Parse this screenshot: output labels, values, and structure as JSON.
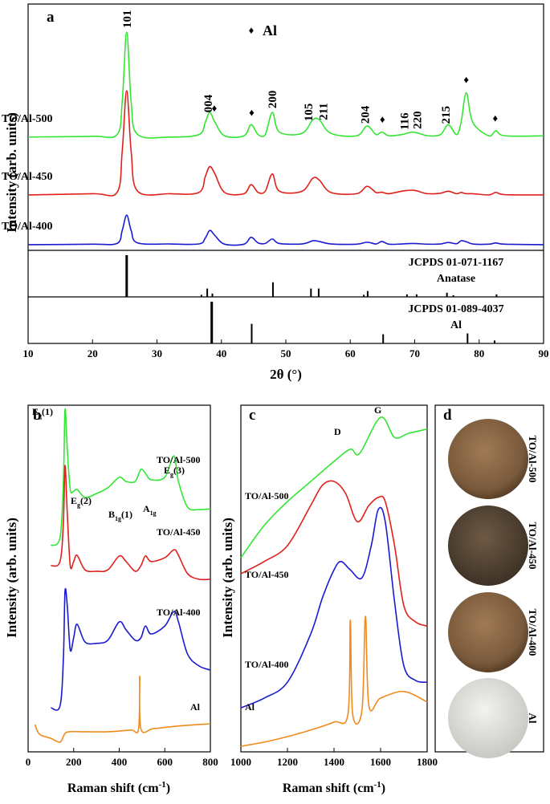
{
  "chart_data": [
    {
      "type": "line",
      "panel": "a",
      "x": [
        10,
        20,
        23.8,
        24.6,
        25.3,
        26,
        27,
        32,
        36.5,
        37.5,
        38.2,
        39,
        40.5,
        43.5,
        44.6,
        45.7,
        46.8,
        47.9,
        49,
        52.5,
        54.2,
        55.2,
        57,
        61,
        62.6,
        64,
        64.9,
        66,
        68,
        69.8,
        72,
        74,
        75.2,
        76.5,
        77.2,
        78,
        79,
        81.5,
        82.6,
        84,
        90
      ],
      "xlim": [
        10,
        90
      ],
      "xticks": [
        10,
        20,
        30,
        40,
        50,
        60,
        70,
        80,
        90
      ],
      "ylim": [
        0,
        100
      ],
      "xlabel": "2θ (°)",
      "ylabel": "Intensity (arb. units)",
      "series": [
        {
          "name": "TO/Al-500",
          "color": "#33e633",
          "values": [
            46,
            46.3,
            47,
            60,
            88.6,
            60,
            47,
            46,
            47,
            52,
            56,
            52,
            46.5,
            46.5,
            51,
            47,
            47,
            56,
            48,
            47.5,
            53,
            53,
            47.5,
            46.5,
            50.5,
            47,
            48,
            46.5,
            47,
            48,
            46.5,
            47,
            51,
            47,
            52,
            64,
            52,
            46.5,
            48.5,
            46.5,
            46.5
          ]
        },
        {
          "name": "TO/Al-450",
          "color": "#e0201b",
          "values": [
            22.5,
            23,
            23.5,
            40,
            64.8,
            40,
            24,
            23,
            23.5,
            30,
            34,
            31,
            23.5,
            23,
            26.7,
            23.5,
            24,
            31,
            24,
            24,
            29.3,
            28.5,
            23.5,
            23,
            26,
            23.5,
            23.6,
            23,
            24,
            24.4,
            23,
            23.2,
            24,
            23,
            23.5,
            23,
            23,
            22.5,
            23.5,
            22.6,
            22.5
          ]
        },
        {
          "name": "TO/Al-400",
          "color": "#1a1ad0",
          "values": [
            2.3,
            2.5,
            2.8,
            8,
            14.3,
            8,
            3,
            2.6,
            2.6,
            5,
            8.1,
            6,
            2.5,
            2.5,
            5.3,
            3,
            2.8,
            4.6,
            2.8,
            2.6,
            3.9,
            3.6,
            2.6,
            2.5,
            3.3,
            2.6,
            3.6,
            2.5,
            2.6,
            2.8,
            2.5,
            2.6,
            3.2,
            2.7,
            3.9,
            3.5,
            2.6,
            2.5,
            3,
            2.5,
            2.3
          ]
        }
      ],
      "peak_labels": [
        {
          "text": "101",
          "x": 25.3
        },
        {
          "text": "004",
          "x": 37.9
        },
        {
          "text": "200",
          "x": 47.9
        },
        {
          "text": "105",
          "x": 53.5
        },
        {
          "text": "211",
          "x": 55.8
        },
        {
          "text": "204",
          "x": 62.3
        },
        {
          "text": "116",
          "x": 68.4
        },
        {
          "text": "220",
          "x": 70.4
        },
        {
          "text": "215",
          "x": 74.8
        }
      ],
      "al_markers": {
        "symbol": "♦",
        "name": "Al",
        "x": [
          38.9,
          44.7,
          65,
          78,
          82.5
        ]
      },
      "references": [
        {
          "name": "JCPDS 01-071-1167",
          "phase": "Anatase",
          "ylim": [
            0,
            100
          ],
          "x": [
            25.3,
            36.9,
            37.8,
            38.6,
            48.0,
            53.9,
            55.1,
            62.1,
            62.7,
            68.8,
            70.3,
            75.0,
            76.0,
            82.7
          ],
          "values": [
            100,
            5,
            20,
            8,
            35,
            20,
            20,
            5,
            14,
            6,
            6,
            10,
            4,
            6
          ]
        },
        {
          "name": "JCPDS 01-089-4037",
          "phase": "Al",
          "ylim": [
            0,
            100
          ],
          "x": [
            38.5,
            44.7,
            65.1,
            78.2,
            82.4
          ],
          "values": [
            100,
            47,
            22,
            24,
            7
          ]
        }
      ]
    },
    {
      "type": "line",
      "panel": "b",
      "x": [
        100,
        140,
        155,
        162,
        172,
        185,
        200,
        215,
        250,
        300,
        350,
        400,
        430,
        470,
        495,
        515,
        540,
        600,
        640,
        660,
        700,
        750,
        800
      ],
      "xlim": [
        0,
        800
      ],
      "xticks": [
        0,
        200,
        400,
        600,
        800
      ],
      "ylim": [
        0,
        100
      ],
      "xlabel": {
        "text": "Raman shift (cm",
        "sup": "-1",
        "end": ")"
      },
      "ylabel": "Intensity (arb. units)",
      "series": [
        {
          "name": "TO/Al-500",
          "color": "#33e633",
          "values": [
            59.5,
            61.8,
            78.0,
            98.8,
            87.3,
            75.7,
            75.2,
            75.7,
            73.4,
            74.5,
            76.2,
            79.2,
            78.0,
            78.0,
            81.5,
            80.3,
            78.5,
            79.2,
            85.4,
            78.0,
            70.6,
            69.9,
            70.1
          ]
        },
        {
          "name": "TO/Al-450",
          "color": "#e0201b",
          "values": [
            53.7,
            54.9,
            66.4,
            82.6,
            68.8,
            53.7,
            54.9,
            56.7,
            52.5,
            52.1,
            52.5,
            56.5,
            54.9,
            52.1,
            53.7,
            56.5,
            54.9,
            56.0,
            58.3,
            56.7,
            51.4,
            49.8,
            49.8
          ]
        },
        {
          "name": "TO/Al-400",
          "color": "#1a1ad0",
          "values": [
            12.7,
            13.2,
            27.1,
            46.3,
            42.1,
            29.4,
            32.9,
            36.8,
            31.7,
            31.3,
            32.2,
            37.5,
            35.2,
            32.2,
            32.9,
            36.3,
            34.0,
            36.3,
            40.5,
            37.5,
            28.2,
            24.8,
            23.6
          ]
        },
        {
          "name": "Al",
          "color": "#f08a1c",
          "x": [
            30,
            50,
            100,
            140,
            160,
            180,
            250,
            350,
            450,
            485,
            490,
            495,
            550,
            650,
            800
          ],
          "values": [
            7.9,
            5.1,
            3.9,
            2.8,
            5.1,
            5.8,
            5.8,
            5.8,
            6.3,
            6.7,
            21.8,
            6.7,
            6.7,
            7.4,
            8.1
          ]
        }
      ],
      "peak_labels": [
        {
          "main": "E",
          "sub": "g",
          "rest": "(1)"
        },
        {
          "main": "E",
          "sub": "g",
          "rest": "(2)"
        },
        {
          "main": "B",
          "sub": "1g",
          "rest": "(1)"
        },
        {
          "main": "A",
          "sub": "1g",
          "rest": ""
        },
        {
          "main": "E",
          "sub": "g",
          "rest": "(3)"
        }
      ]
    },
    {
      "type": "line",
      "panel": "c",
      "xlim": [
        1000,
        1800
      ],
      "xticks": [
        1000,
        1200,
        1400,
        1600,
        1800
      ],
      "ylim": [
        0,
        100
      ],
      "xlabel": {
        "text": "Raman shift (cm",
        "sup": "-1",
        "end": ")"
      },
      "ylabel": "Intensity (arb. units)",
      "series": [
        {
          "name": "TO/Al-500",
          "color": "#33e633",
          "x": [
            1000,
            1100,
            1200,
            1300,
            1400,
            1470,
            1510,
            1600,
            1660,
            1720,
            1800
          ],
          "values": [
            56.0,
            65.3,
            72.2,
            78.0,
            83.8,
            87.3,
            86.1,
            96.5,
            90.7,
            91.9,
            93.1
          ]
        },
        {
          "name": "TO/Al-450",
          "color": "#e0201b",
          "x": [
            1000,
            1100,
            1200,
            1300,
            1350,
            1400,
            1450,
            1500,
            1550,
            1590,
            1620,
            1660,
            1700,
            1750,
            1800
          ],
          "values": [
            51.4,
            54.9,
            59.5,
            71.1,
            76.9,
            78.0,
            74.5,
            66.4,
            71.1,
            73.4,
            72.2,
            59.5,
            42.1,
            37.5,
            36.3
          ]
        },
        {
          "name": "TO/Al-400",
          "color": "#1a1ad0",
          "x": [
            1000,
            1100,
            1200,
            1300,
            1350,
            1400,
            1430,
            1470,
            1520,
            1560,
            1590,
            1620,
            1660,
            1700,
            1750,
            1800
          ],
          "values": [
            12.7,
            15.5,
            20.1,
            34.0,
            44.4,
            52.5,
            54.9,
            52.5,
            50.2,
            59.5,
            69.9,
            66.4,
            43.3,
            24.8,
            20.6,
            20.1
          ]
        },
        {
          "name": "Al",
          "color": "#f08a1c",
          "x": [
            1000,
            1100,
            1200,
            1300,
            1400,
            1460,
            1470,
            1480,
            1520,
            1535,
            1550,
            1600,
            1700,
            1800
          ],
          "values": [
            1.6,
            2.8,
            4.4,
            6.3,
            8.6,
            10.9,
            38.0,
            10.9,
            12.0,
            39.1,
            13.2,
            15.5,
            17.4,
            14.4
          ]
        }
      ],
      "peak_labels": [
        {
          "main": "D"
        },
        {
          "main": "G"
        }
      ]
    }
  ],
  "photo_panel": {
    "panel": "d",
    "labels": [
      "TO/Al-500",
      "TO/Al-450",
      "TO/Al-400",
      "Al"
    ]
  }
}
